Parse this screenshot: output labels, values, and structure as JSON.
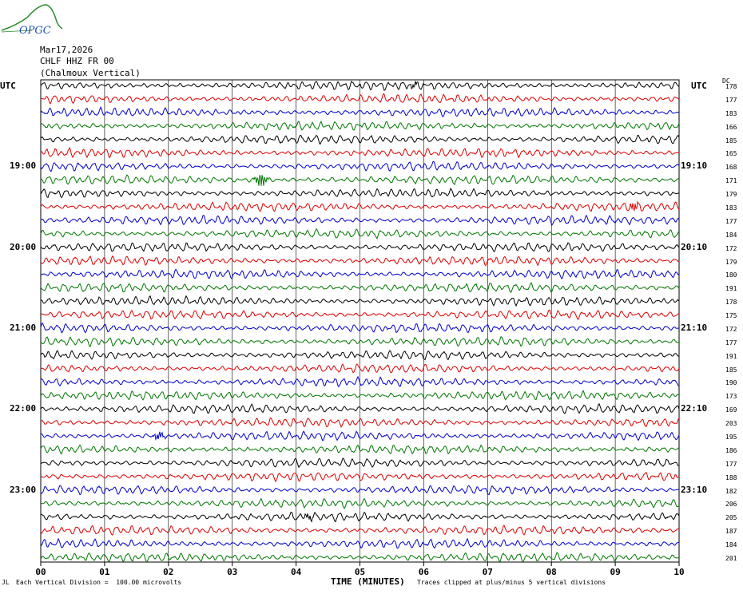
{
  "logo": {
    "text": "OPGC"
  },
  "header": {
    "date": "Mar17,2026",
    "station": "CHLF HHZ FR 00",
    "site": "(Chalmoux Vertical)"
  },
  "axes": {
    "left_title": "UTC",
    "right_title": "UTC",
    "dc_title": "DC",
    "xlabel": "TIME (MINUTES)"
  },
  "footer": {
    "scale": "Each Vertical Division =  100.00 microvolts",
    "clip": "Traces clipped at plus/minus 5 vertical divisions",
    "mark": "JL"
  },
  "colors": {
    "trace_cycle": [
      "#000000",
      "#dd0000",
      "#0000cc",
      "#007700"
    ],
    "grid": "#000000"
  },
  "chart_data": {
    "type": "line",
    "title": "CHLF HHZ FR 00 (Chalmoux Vertical)",
    "xlabel": "TIME (MINUTES)",
    "xlim": [
      0,
      10
    ],
    "x_ticks": [
      "00",
      "01",
      "02",
      "03",
      "04",
      "05",
      "06",
      "07",
      "08",
      "09",
      "10"
    ],
    "trace_count": 36,
    "left_time_labels": [
      {
        "row": 6,
        "label": "19:00"
      },
      {
        "row": 12,
        "label": "20:00"
      },
      {
        "row": 18,
        "label": "21:00"
      },
      {
        "row": 24,
        "label": "22:00"
      },
      {
        "row": 30,
        "label": "23:00"
      }
    ],
    "right_time_labels": [
      {
        "row": 6,
        "label": "19:10"
      },
      {
        "row": 12,
        "label": "20:10"
      },
      {
        "row": 18,
        "label": "21:10"
      },
      {
        "row": 24,
        "label": "22:10"
      },
      {
        "row": 30,
        "label": "23:10"
      }
    ],
    "dc_values": [
      178,
      177,
      183,
      166,
      185,
      165,
      168,
      171,
      179,
      183,
      177,
      184,
      172,
      179,
      180,
      191,
      178,
      175,
      172,
      177,
      191,
      185,
      190,
      173,
      169,
      203,
      195,
      186,
      177,
      188,
      182,
      206,
      205,
      187,
      184,
      201
    ],
    "events": [
      {
        "row": 7,
        "minute": 3.45,
        "amp": 2.2
      },
      {
        "row": 9,
        "minute": 9.3,
        "amp": 1.2
      },
      {
        "row": 26,
        "minute": 1.85,
        "amp": 1.1
      },
      {
        "row": 32,
        "minute": 4.2,
        "amp": 0.8
      },
      {
        "row": 0,
        "minute": 5.85,
        "amp": 0.8
      }
    ]
  }
}
